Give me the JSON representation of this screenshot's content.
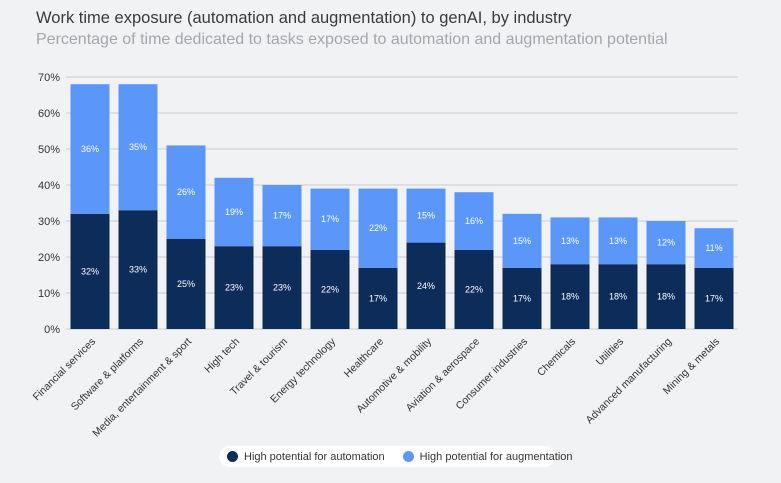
{
  "header": {
    "title": "Work time exposure (automation and augmentation) to genAI, by industry",
    "subtitle": "Percentage of time dedicated to tasks exposed to automation and augmentation potential"
  },
  "colors": {
    "automation": "#0d2c59",
    "augmentation": "#5b97f9"
  },
  "chart_data": {
    "type": "bar",
    "stacked": true,
    "title": "Work time exposure (automation and augmentation) to genAI, by industry",
    "subtitle": "Percentage of time dedicated to tasks exposed to automation and augmentation potential",
    "xlabel": "",
    "ylabel": "",
    "ylim": [
      0,
      70
    ],
    "yticks": [
      "0%",
      "10%",
      "20%",
      "30%",
      "40%",
      "50%",
      "60%",
      "70%"
    ],
    "grid": true,
    "legend_position": "bottom",
    "categories": [
      "Financial services",
      "Software & platforms",
      "Media, entertainment & sport",
      "High tech",
      "Travel & tourism",
      "Energy technology",
      "Healthcare",
      "Automotive & mobility",
      "Aviation & aerospace",
      "Consumer industries",
      "Chemicals",
      "Utilities",
      "Advanced manufacturing",
      "Mining & metals"
    ],
    "series": [
      {
        "name": "High potential for automation",
        "values": [
          32,
          33,
          25,
          23,
          23,
          22,
          17,
          24,
          22,
          17,
          18,
          18,
          18,
          17
        ],
        "labels": [
          "32%",
          "33%",
          "25%",
          "23%",
          "23%",
          "22%",
          "17%",
          "24%",
          "22%",
          "17%",
          "18%",
          "18%",
          "18%",
          "17%"
        ]
      },
      {
        "name": "High potential for augmentation",
        "values": [
          36,
          35,
          26,
          19,
          17,
          17,
          22,
          15,
          16,
          15,
          13,
          13,
          12,
          11
        ],
        "labels": [
          "36%",
          "35%",
          "26%",
          "19%",
          "17%",
          "17%",
          "22%",
          "15%",
          "16%",
          "15%",
          "13%",
          "13%",
          "12%",
          "11%"
        ]
      }
    ]
  },
  "legend": {
    "automation_label": "High potential for automation",
    "augmentation_label": "High potential for augmentation"
  }
}
